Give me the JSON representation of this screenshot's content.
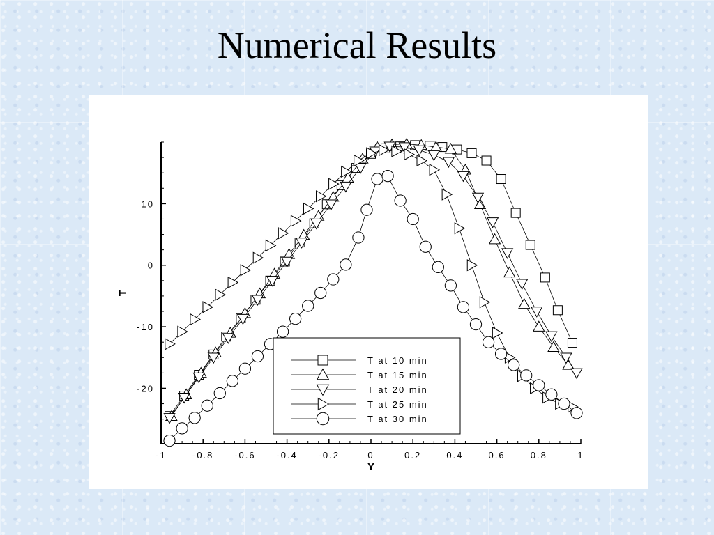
{
  "slide": {
    "title": "Numerical Results"
  },
  "chart_data": {
    "type": "line",
    "title": "",
    "xlabel": "Y",
    "ylabel": "T",
    "xlim": [
      -1,
      1
    ],
    "ylim": [
      -29,
      20
    ],
    "xticks": [
      -1,
      -0.8,
      -0.6,
      -0.4,
      -0.2,
      0,
      0.2,
      0.4,
      0.6,
      0.8,
      1
    ],
    "xtick_labels": [
      "-1",
      "-0.8",
      "-0.6",
      "-0.4",
      "-0.2",
      "0",
      "0.2",
      "0.4",
      "0.6",
      "0.8",
      "1"
    ],
    "yticks": [
      -20,
      -10,
      0,
      10
    ],
    "ytick_labels": [
      "-20",
      "-10",
      "0",
      "10"
    ],
    "grid": false,
    "legend_position": "bottom-center",
    "series": [
      {
        "name": "T at 10 min",
        "marker": "square",
        "x": [
          -0.96,
          -0.89,
          -0.82,
          -0.75,
          -0.69,
          -0.62,
          -0.55,
          -0.48,
          -0.41,
          -0.34,
          -0.27,
          -0.21,
          -0.14,
          -0.07,
          0.0,
          0.07,
          0.14,
          0.21,
          0.28,
          0.34,
          0.41,
          0.48,
          0.55,
          0.62,
          0.69,
          0.76,
          0.83,
          0.89,
          0.96
        ],
        "y": [
          -24.5,
          -21.2,
          -17.8,
          -14.5,
          -11.6,
          -8.6,
          -5.6,
          -2.5,
          0.6,
          3.7,
          6.8,
          9.9,
          13.0,
          15.8,
          18.1,
          19.0,
          19.3,
          19.5,
          19.4,
          19.2,
          18.8,
          18.2,
          17.0,
          14.0,
          8.5,
          3.3,
          -2.0,
          -7.3,
          -12.6
        ]
      },
      {
        "name": "T at 15 min",
        "marker": "triangle-up",
        "x": [
          -0.95,
          -0.88,
          -0.81,
          -0.74,
          -0.67,
          -0.6,
          -0.53,
          -0.46,
          -0.39,
          -0.32,
          -0.25,
          -0.18,
          -0.11,
          -0.04,
          0.03,
          0.1,
          0.17,
          0.24,
          0.31,
          0.38,
          0.45,
          0.52,
          0.59,
          0.66,
          0.73,
          0.8,
          0.87,
          0.94
        ],
        "y": [
          -24.5,
          -21.0,
          -17.5,
          -14.2,
          -11.0,
          -7.8,
          -4.6,
          -1.4,
          1.8,
          4.9,
          8.0,
          11.1,
          14.2,
          17.3,
          19.2,
          19.6,
          19.7,
          19.5,
          19.2,
          18.9,
          15.5,
          9.9,
          4.2,
          -1.2,
          -6.3,
          -10.0,
          -13.3,
          -16.2
        ]
      },
      {
        "name": "T at 20 min",
        "marker": "triangle-down",
        "x": [
          -0.96,
          -0.89,
          -0.82,
          -0.75,
          -0.68,
          -0.61,
          -0.54,
          -0.47,
          -0.4,
          -0.33,
          -0.26,
          -0.19,
          -0.12,
          -0.05,
          0.02,
          0.09,
          0.16,
          0.23,
          0.3,
          0.37,
          0.44,
          0.51,
          0.58,
          0.65,
          0.72,
          0.79,
          0.86,
          0.93,
          0.98
        ],
        "y": [
          -24.8,
          -21.5,
          -18.2,
          -15.0,
          -11.8,
          -8.7,
          -5.6,
          -2.5,
          0.6,
          3.7,
          6.8,
          9.9,
          12.8,
          15.8,
          18.5,
          19.3,
          19.2,
          18.7,
          17.9,
          16.8,
          14.5,
          11.0,
          7.0,
          2.0,
          -3.0,
          -7.5,
          -11.5,
          -15.0,
          -17.5
        ]
      },
      {
        "name": "T at 25 min",
        "marker": "triangle-right",
        "x": [
          -0.96,
          -0.9,
          -0.84,
          -0.78,
          -0.72,
          -0.66,
          -0.6,
          -0.54,
          -0.48,
          -0.42,
          -0.36,
          -0.3,
          -0.24,
          -0.18,
          -0.12,
          -0.06,
          0.0,
          0.06,
          0.12,
          0.18,
          0.24,
          0.3,
          0.36,
          0.42,
          0.48,
          0.54,
          0.6,
          0.66,
          0.72,
          0.78,
          0.84,
          0.9,
          0.96
        ],
        "y": [
          -12.8,
          -10.8,
          -8.8,
          -6.8,
          -4.8,
          -2.8,
          -0.8,
          1.2,
          3.2,
          5.2,
          7.2,
          9.2,
          11.2,
          13.2,
          15.2,
          17.0,
          18.2,
          18.7,
          18.5,
          18.0,
          17.0,
          15.5,
          11.5,
          6.0,
          0.0,
          -6.0,
          -11.0,
          -15.0,
          -18.0,
          -20.0,
          -21.5,
          -22.5,
          -23.0
        ]
      },
      {
        "name": "T at 30 min",
        "marker": "circle",
        "x": [
          -0.96,
          -0.9,
          -0.84,
          -0.78,
          -0.72,
          -0.66,
          -0.6,
          -0.54,
          -0.48,
          -0.42,
          -0.36,
          -0.3,
          -0.24,
          -0.18,
          -0.12,
          -0.06,
          -0.02,
          0.03,
          0.08,
          0.14,
          0.2,
          0.26,
          0.32,
          0.38,
          0.44,
          0.5,
          0.56,
          0.62,
          0.68,
          0.74,
          0.8,
          0.86,
          0.92,
          0.98
        ],
        "y": [
          -28.5,
          -26.5,
          -24.8,
          -22.8,
          -20.8,
          -18.8,
          -16.8,
          -14.8,
          -12.8,
          -10.8,
          -8.7,
          -6.6,
          -4.5,
          -2.3,
          0.1,
          4.5,
          9.0,
          14.0,
          14.5,
          10.5,
          7.5,
          3.0,
          -0.3,
          -3.3,
          -6.8,
          -9.6,
          -12.5,
          -14.4,
          -16.2,
          -17.9,
          -19.5,
          -21.0,
          -22.5,
          -24.0
        ]
      }
    ]
  }
}
